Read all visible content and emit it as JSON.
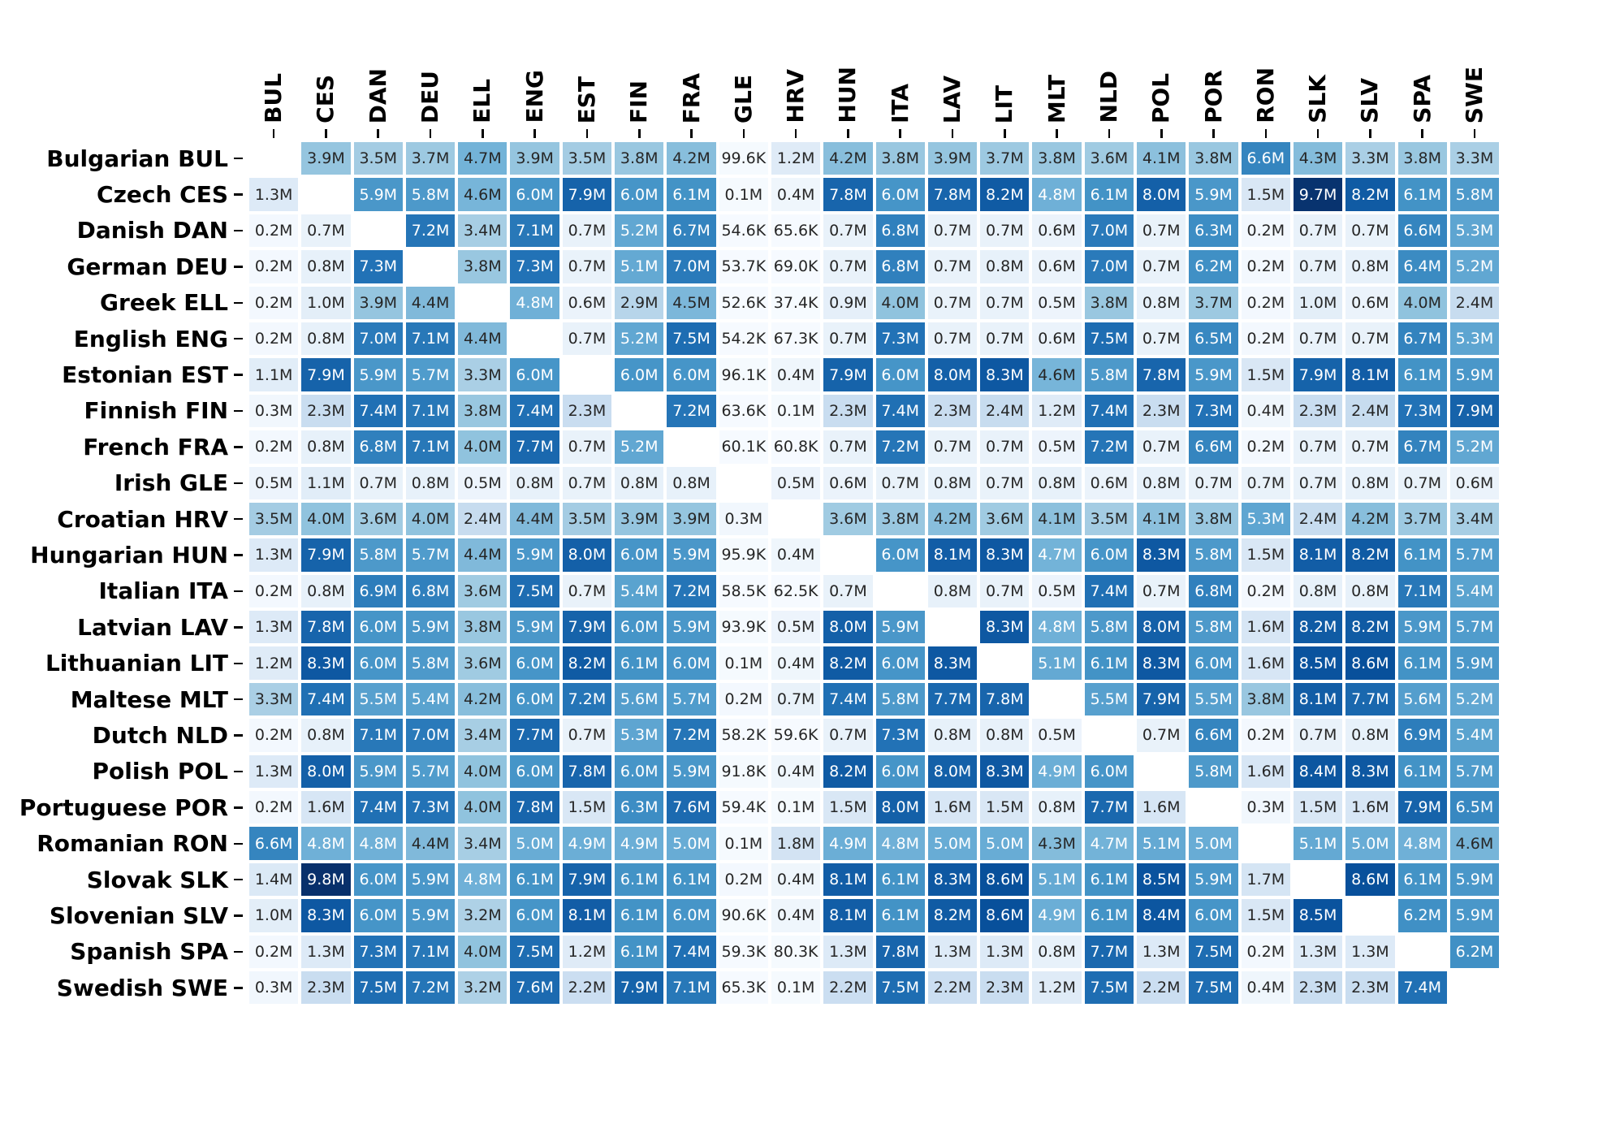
{
  "chart_data": {
    "type": "heatmap",
    "title": "",
    "x_labels": [
      "BUL",
      "CES",
      "DAN",
      "DEU",
      "ELL",
      "ENG",
      "EST",
      "FIN",
      "FRA",
      "GLE",
      "HRV",
      "HUN",
      "ITA",
      "LAV",
      "LIT",
      "MLT",
      "NLD",
      "POL",
      "POR",
      "RON",
      "SLK",
      "SLV",
      "SPA",
      "SWE"
    ],
    "y_labels": [
      "Bulgarian BUL",
      "Czech CES",
      "Danish DAN",
      "German DEU",
      "Greek ELL",
      "English ENG",
      "Estonian EST",
      "Finnish FIN",
      "French FRA",
      "Irish GLE",
      "Croatian HRV",
      "Hungarian HUN",
      "Italian ITA",
      "Latvian LAV",
      "Lithuanian LIT",
      "Maltese MLT",
      "Dutch NLD",
      "Polish POL",
      "Portuguese POR",
      "Romanian RON",
      "Slovak SLK",
      "Slovenian SLV",
      "Spanish SPA",
      "Swedish SWE"
    ],
    "values": [
      [
        "",
        "3.9M",
        "3.5M",
        "3.7M",
        "4.7M",
        "3.9M",
        "3.5M",
        "3.8M",
        "4.2M",
        "99.6K",
        "1.2M",
        "4.2M",
        "3.8M",
        "3.9M",
        "3.7M",
        "3.8M",
        "3.6M",
        "4.1M",
        "3.8M",
        "6.6M",
        "4.3M",
        "3.3M",
        "3.8M",
        "3.3M"
      ],
      [
        "1.3M",
        "",
        "5.9M",
        "5.8M",
        "4.6M",
        "6.0M",
        "7.9M",
        "6.0M",
        "6.1M",
        "0.1M",
        "0.4M",
        "7.8M",
        "6.0M",
        "7.8M",
        "8.2M",
        "4.8M",
        "6.1M",
        "8.0M",
        "5.9M",
        "1.5M",
        "9.7M",
        "8.2M",
        "6.1M",
        "5.8M"
      ],
      [
        "0.2M",
        "0.7M",
        "",
        "7.2M",
        "3.4M",
        "7.1M",
        "0.7M",
        "5.2M",
        "6.7M",
        "54.6K",
        "65.6K",
        "0.7M",
        "6.8M",
        "0.7M",
        "0.7M",
        "0.6M",
        "7.0M",
        "0.7M",
        "6.3M",
        "0.2M",
        "0.7M",
        "0.7M",
        "6.6M",
        "5.3M"
      ],
      [
        "0.2M",
        "0.8M",
        "7.3M",
        "",
        "3.8M",
        "7.3M",
        "0.7M",
        "5.1M",
        "7.0M",
        "53.7K",
        "69.0K",
        "0.7M",
        "6.8M",
        "0.7M",
        "0.8M",
        "0.6M",
        "7.0M",
        "0.7M",
        "6.2M",
        "0.2M",
        "0.7M",
        "0.8M",
        "6.4M",
        "5.2M"
      ],
      [
        "0.2M",
        "1.0M",
        "3.9M",
        "4.4M",
        "",
        "4.8M",
        "0.6M",
        "2.9M",
        "4.5M",
        "52.6K",
        "37.4K",
        "0.9M",
        "4.0M",
        "0.7M",
        "0.7M",
        "0.5M",
        "3.8M",
        "0.8M",
        "3.7M",
        "0.2M",
        "1.0M",
        "0.6M",
        "4.0M",
        "2.4M"
      ],
      [
        "0.2M",
        "0.8M",
        "7.0M",
        "7.1M",
        "4.4M",
        "",
        "0.7M",
        "5.2M",
        "7.5M",
        "54.2K",
        "67.3K",
        "0.7M",
        "7.3M",
        "0.7M",
        "0.7M",
        "0.6M",
        "7.5M",
        "0.7M",
        "6.5M",
        "0.2M",
        "0.7M",
        "0.7M",
        "6.7M",
        "5.3M"
      ],
      [
        "1.1M",
        "7.9M",
        "5.9M",
        "5.7M",
        "3.3M",
        "6.0M",
        "",
        "6.0M",
        "6.0M",
        "96.1K",
        "0.4M",
        "7.9M",
        "6.0M",
        "8.0M",
        "8.3M",
        "4.6M",
        "5.8M",
        "7.8M",
        "5.9M",
        "1.5M",
        "7.9M",
        "8.1M",
        "6.1M",
        "5.9M"
      ],
      [
        "0.3M",
        "2.3M",
        "7.4M",
        "7.1M",
        "3.8M",
        "7.4M",
        "2.3M",
        "",
        "7.2M",
        "63.6K",
        "0.1M",
        "2.3M",
        "7.4M",
        "2.3M",
        "2.4M",
        "1.2M",
        "7.4M",
        "2.3M",
        "7.3M",
        "0.4M",
        "2.3M",
        "2.4M",
        "7.3M",
        "7.9M"
      ],
      [
        "0.2M",
        "0.8M",
        "6.8M",
        "7.1M",
        "4.0M",
        "7.7M",
        "0.7M",
        "5.2M",
        "",
        "60.1K",
        "60.8K",
        "0.7M",
        "7.2M",
        "0.7M",
        "0.7M",
        "0.5M",
        "7.2M",
        "0.7M",
        "6.6M",
        "0.2M",
        "0.7M",
        "0.7M",
        "6.7M",
        "5.2M"
      ],
      [
        "0.5M",
        "1.1M",
        "0.7M",
        "0.8M",
        "0.5M",
        "0.8M",
        "0.7M",
        "0.8M",
        "0.8M",
        "",
        "0.5M",
        "0.6M",
        "0.7M",
        "0.8M",
        "0.7M",
        "0.8M",
        "0.6M",
        "0.8M",
        "0.7M",
        "0.7M",
        "0.7M",
        "0.8M",
        "0.7M",
        "0.6M"
      ],
      [
        "3.5M",
        "4.0M",
        "3.6M",
        "4.0M",
        "2.4M",
        "4.4M",
        "3.5M",
        "3.9M",
        "3.9M",
        "0.3M",
        "",
        "3.6M",
        "3.8M",
        "4.2M",
        "3.6M",
        "4.1M",
        "3.5M",
        "4.1M",
        "3.8M",
        "5.3M",
        "2.4M",
        "4.2M",
        "3.7M",
        "3.4M"
      ],
      [
        "1.3M",
        "7.9M",
        "5.8M",
        "5.7M",
        "4.4M",
        "5.9M",
        "8.0M",
        "6.0M",
        "5.9M",
        "95.9K",
        "0.4M",
        "",
        "6.0M",
        "8.1M",
        "8.3M",
        "4.7M",
        "6.0M",
        "8.3M",
        "5.8M",
        "1.5M",
        "8.1M",
        "8.2M",
        "6.1M",
        "5.7M"
      ],
      [
        "0.2M",
        "0.8M",
        "6.9M",
        "6.8M",
        "3.6M",
        "7.5M",
        "0.7M",
        "5.4M",
        "7.2M",
        "58.5K",
        "62.5K",
        "0.7M",
        "",
        "0.8M",
        "0.7M",
        "0.5M",
        "7.4M",
        "0.7M",
        "6.8M",
        "0.2M",
        "0.8M",
        "0.8M",
        "7.1M",
        "5.4M"
      ],
      [
        "1.3M",
        "7.8M",
        "6.0M",
        "5.9M",
        "3.8M",
        "5.9M",
        "7.9M",
        "6.0M",
        "5.9M",
        "93.9K",
        "0.5M",
        "8.0M",
        "5.9M",
        "",
        "8.3M",
        "4.8M",
        "5.8M",
        "8.0M",
        "5.8M",
        "1.6M",
        "8.2M",
        "8.2M",
        "5.9M",
        "5.7M"
      ],
      [
        "1.2M",
        "8.3M",
        "6.0M",
        "5.8M",
        "3.6M",
        "6.0M",
        "8.2M",
        "6.1M",
        "6.0M",
        "0.1M",
        "0.4M",
        "8.2M",
        "6.0M",
        "8.3M",
        "",
        "5.1M",
        "6.1M",
        "8.3M",
        "6.0M",
        "1.6M",
        "8.5M",
        "8.6M",
        "6.1M",
        "5.9M"
      ],
      [
        "3.3M",
        "7.4M",
        "5.5M",
        "5.4M",
        "4.2M",
        "6.0M",
        "7.2M",
        "5.6M",
        "5.7M",
        "0.2M",
        "0.7M",
        "7.4M",
        "5.8M",
        "7.7M",
        "7.8M",
        "",
        "5.5M",
        "7.9M",
        "5.5M",
        "3.8M",
        "8.1M",
        "7.7M",
        "5.6M",
        "5.2M"
      ],
      [
        "0.2M",
        "0.8M",
        "7.1M",
        "7.0M",
        "3.4M",
        "7.7M",
        "0.7M",
        "5.3M",
        "7.2M",
        "58.2K",
        "59.6K",
        "0.7M",
        "7.3M",
        "0.8M",
        "0.8M",
        "0.5M",
        "",
        "0.7M",
        "6.6M",
        "0.2M",
        "0.7M",
        "0.8M",
        "6.9M",
        "5.4M"
      ],
      [
        "1.3M",
        "8.0M",
        "5.9M",
        "5.7M",
        "4.0M",
        "6.0M",
        "7.8M",
        "6.0M",
        "5.9M",
        "91.8K",
        "0.4M",
        "8.2M",
        "6.0M",
        "8.0M",
        "8.3M",
        "4.9M",
        "6.0M",
        "",
        "5.8M",
        "1.6M",
        "8.4M",
        "8.3M",
        "6.1M",
        "5.7M"
      ],
      [
        "0.2M",
        "1.6M",
        "7.4M",
        "7.3M",
        "4.0M",
        "7.8M",
        "1.5M",
        "6.3M",
        "7.6M",
        "59.4K",
        "0.1M",
        "1.5M",
        "8.0M",
        "1.6M",
        "1.5M",
        "0.8M",
        "7.7M",
        "1.6M",
        "",
        "0.3M",
        "1.5M",
        "1.6M",
        "7.9M",
        "6.5M"
      ],
      [
        "6.6M",
        "4.8M",
        "4.8M",
        "4.4M",
        "3.4M",
        "5.0M",
        "4.9M",
        "4.9M",
        "5.0M",
        "0.1M",
        "1.8M",
        "4.9M",
        "4.8M",
        "5.0M",
        "5.0M",
        "4.3M",
        "4.7M",
        "5.1M",
        "5.0M",
        "",
        "5.1M",
        "5.0M",
        "4.8M",
        "4.6M"
      ],
      [
        "1.4M",
        "9.8M",
        "6.0M",
        "5.9M",
        "4.8M",
        "6.1M",
        "7.9M",
        "6.1M",
        "6.1M",
        "0.2M",
        "0.4M",
        "8.1M",
        "6.1M",
        "8.3M",
        "8.6M",
        "5.1M",
        "6.1M",
        "8.5M",
        "5.9M",
        "1.7M",
        "",
        "8.6M",
        "6.1M",
        "5.9M"
      ],
      [
        "1.0M",
        "8.3M",
        "6.0M",
        "5.9M",
        "3.2M",
        "6.0M",
        "8.1M",
        "6.1M",
        "6.0M",
        "90.6K",
        "0.4M",
        "8.1M",
        "6.1M",
        "8.2M",
        "8.6M",
        "4.9M",
        "6.1M",
        "8.4M",
        "6.0M",
        "1.5M",
        "8.5M",
        "",
        "6.2M",
        "5.9M"
      ],
      [
        "0.2M",
        "1.3M",
        "7.3M",
        "7.1M",
        "4.0M",
        "7.5M",
        "1.2M",
        "6.1M",
        "7.4M",
        "59.3K",
        "80.3K",
        "1.3M",
        "7.8M",
        "1.3M",
        "1.3M",
        "0.8M",
        "7.7M",
        "1.3M",
        "7.5M",
        "0.2M",
        "1.3M",
        "1.3M",
        "",
        "6.2M"
      ],
      [
        "0.3M",
        "2.3M",
        "7.5M",
        "7.2M",
        "3.2M",
        "7.6M",
        "2.2M",
        "7.9M",
        "7.1M",
        "65.3K",
        "0.1M",
        "2.2M",
        "7.5M",
        "2.2M",
        "2.3M",
        "1.2M",
        "7.5M",
        "2.2M",
        "7.5M",
        "0.4M",
        "2.3M",
        "2.3M",
        "7.4M",
        ""
      ]
    ],
    "colormap_name": "Blues",
    "colormap_stops": [
      "#f7fbff",
      "#deebf7",
      "#c6dbef",
      "#9ecae1",
      "#6baed6",
      "#4292c6",
      "#2171b5",
      "#08519c",
      "#08306b"
    ],
    "vmin_millions": 0,
    "vmax_millions": 9.8,
    "white_text_threshold_millions": 4.7,
    "dark_text_exception_cells": [
      [
        0,
        4
      ]
    ],
    "cell_gap_color": "#ffffff",
    "diagonal_color": "#ffffff",
    "dark_text_color": "#262626",
    "white_text_color": "#ffffff",
    "axis_label_color": "#000000",
    "legend_position": "none",
    "grid_on": false
  }
}
